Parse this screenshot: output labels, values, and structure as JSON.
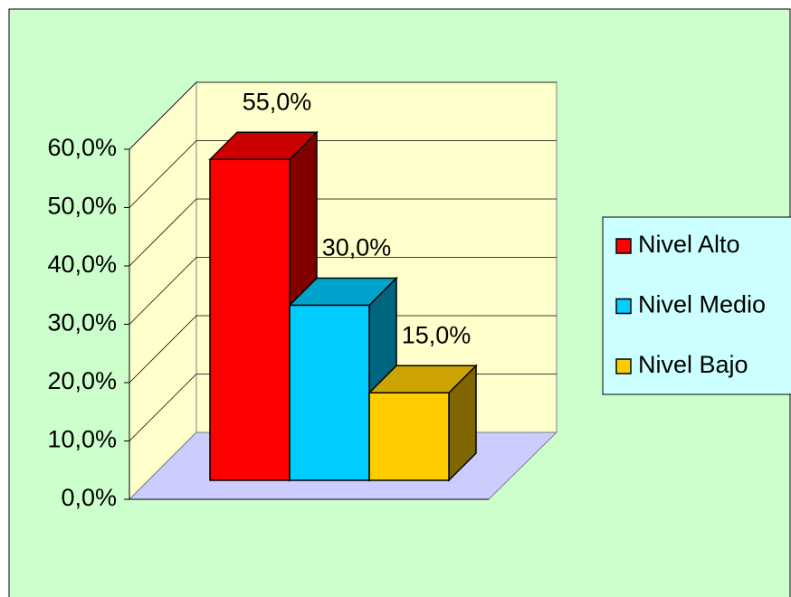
{
  "chart_data": {
    "type": "bar3d",
    "categories": [
      null
    ],
    "series": [
      {
        "name": "Nivel Alto",
        "color": "#ff0000",
        "values": [
          55
        ],
        "value_labels": [
          "55,0%"
        ]
      },
      {
        "name": "Nivel Medio",
        "color": "#00ccff",
        "values": [
          30
        ],
        "value_labels": [
          "30,0%"
        ]
      },
      {
        "name": "Nivel Bajo",
        "color": "#ffcc00",
        "values": [
          15
        ],
        "value_labels": [
          "15,0%"
        ]
      }
    ],
    "ylim": [
      0,
      60
    ],
    "yticks": [
      {
        "value": 0,
        "label": "0,0%"
      },
      {
        "value": 10,
        "label": "10,0%"
      },
      {
        "value": 20,
        "label": "20,0%"
      },
      {
        "value": 30,
        "label": "30,0%"
      },
      {
        "value": 40,
        "label": "40,0%"
      },
      {
        "value": 50,
        "label": "50,0%"
      },
      {
        "value": 60,
        "label": "60,0%"
      }
    ],
    "grid": true,
    "legend": "right"
  }
}
